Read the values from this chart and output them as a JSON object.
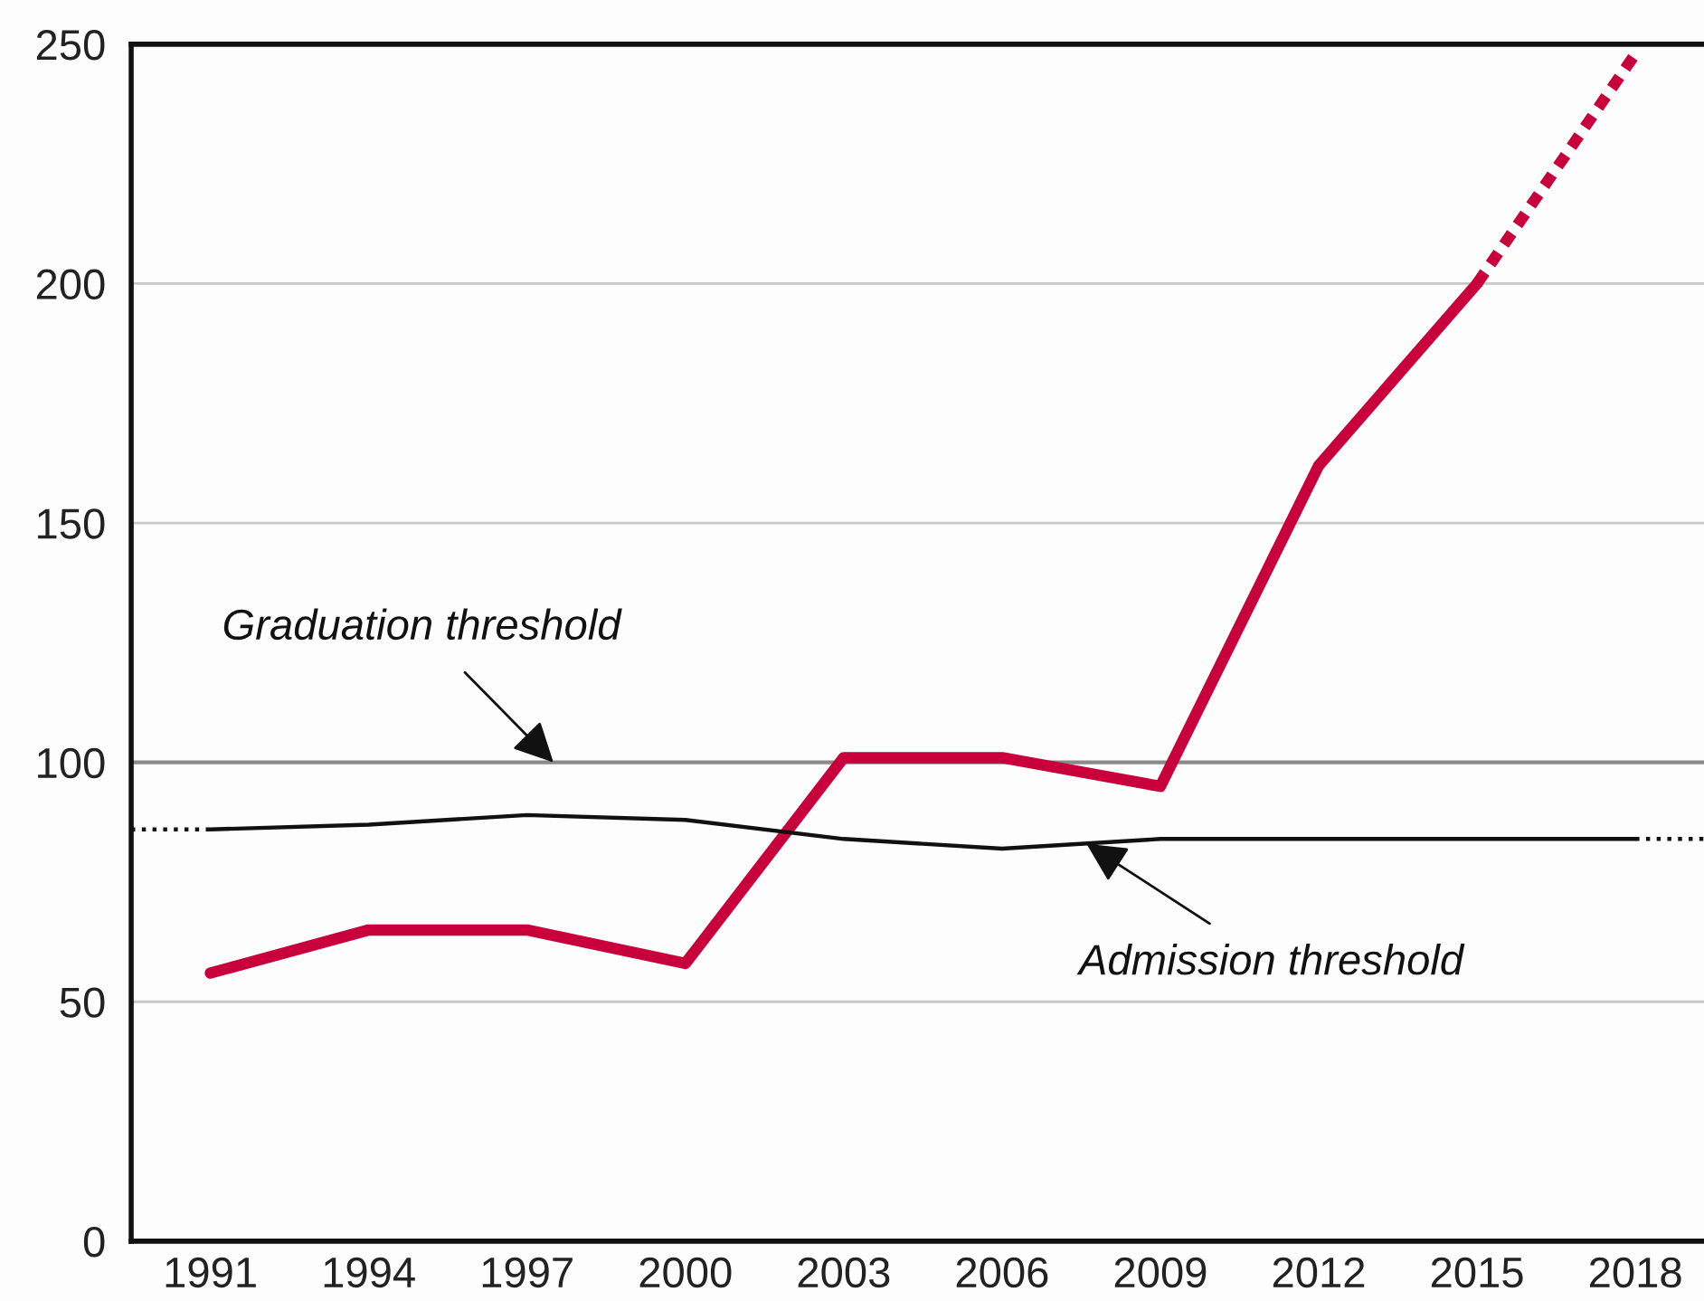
{
  "chart_data": {
    "type": "line",
    "x": [
      1991,
      1994,
      1997,
      2000,
      2003,
      2006,
      2009,
      2012,
      2015,
      2018
    ],
    "series": [
      {
        "color": "#c8003c",
        "line_style": "solid",
        "values": [
          56,
          65,
          65,
          58,
          101,
          101,
          95,
          162,
          200,
          null
        ]
      },
      {
        "color": "#c8003c",
        "line_style": "dashed",
        "x": [
          2015,
          2018
        ],
        "values": [
          200,
          248
        ]
      },
      {
        "color": "#111111",
        "line_style": "solid",
        "values": [
          86,
          87,
          89,
          88,
          84,
          82,
          84,
          84,
          84,
          84
        ]
      },
      {
        "color": "#111111",
        "line_style": "dotted",
        "x": [
          1989.5,
          1991
        ],
        "values": [
          86,
          86
        ]
      },
      {
        "color": "#111111",
        "line_style": "dotted",
        "x": [
          2018,
          2019.3
        ],
        "values": [
          84,
          84
        ]
      }
    ],
    "xlim": [
      1989.5,
      2019.3
    ],
    "xticks": [
      1991,
      1994,
      1997,
      2000,
      2003,
      2006,
      2009,
      2012,
      2015,
      2018
    ],
    "ylim": [
      0,
      250
    ],
    "yticks": [
      0,
      50,
      100,
      150,
      200,
      250
    ],
    "ref_lines": [
      {
        "axis": "y",
        "value": 100,
        "color": "#8a8a8a"
      }
    ],
    "annotations": [
      {
        "text": "Graduation threshold",
        "x": 1997.5,
        "y": 100
      },
      {
        "text": "Admission threshold",
        "x": 2007.6,
        "y": 83
      }
    ],
    "grid": "y",
    "legend": false,
    "marker": "none"
  }
}
